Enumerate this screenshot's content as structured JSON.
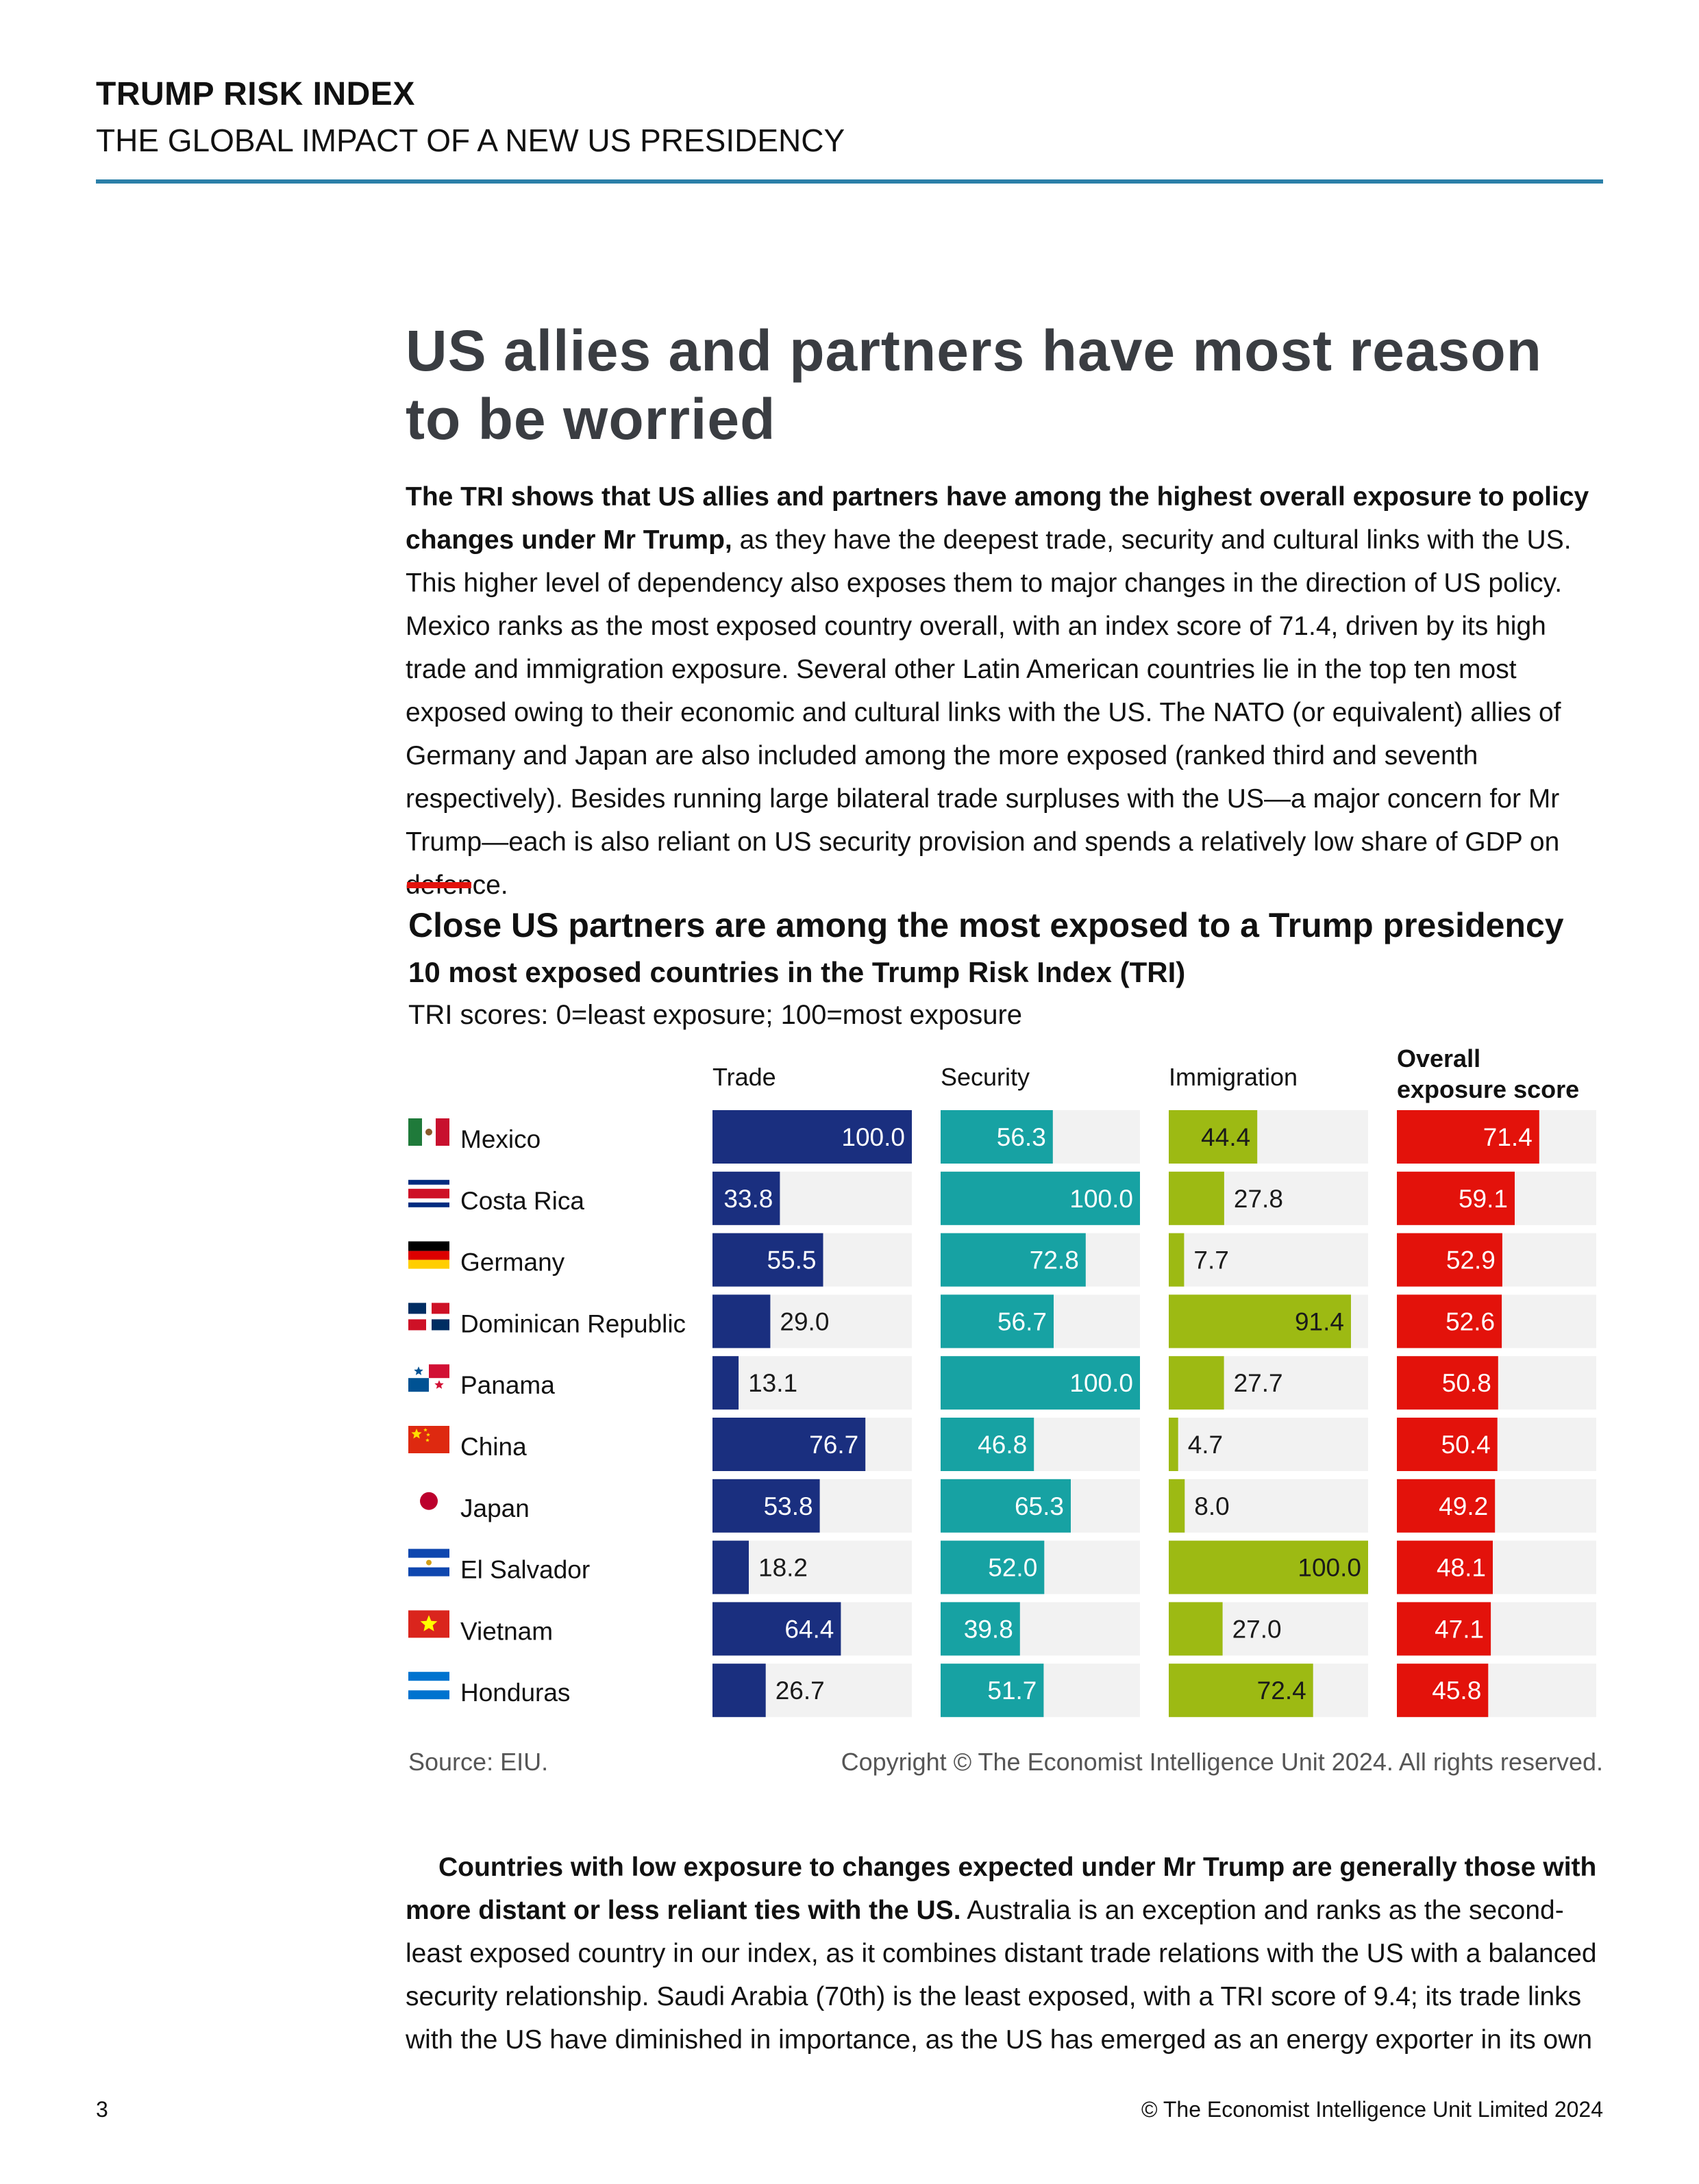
{
  "header": {
    "title": "TRUMP RISK INDEX",
    "subtitle": "THE GLOBAL IMPACT OF A NEW US PRESIDENCY"
  },
  "heading": "US allies and partners have most reason to be worried",
  "para1": {
    "bold": "The TRI shows that US allies and partners have among the highest overall exposure to policy changes under Mr Trump,",
    "text": " as they have the deepest trade, security and cultural links with the US. This higher level of dependency also exposes them to major changes in the direction of US policy. Mexico ranks as the most exposed country overall, with an index score of 71.4, driven by its high trade and immigration exposure. Several other Latin American countries lie in the top ten most exposed owing to their economic and cultural links with the US. The NATO (or equivalent) allies of Germany and Japan are also included among the more exposed (ranked third and seventh respectively). Besides running large bilateral trade surpluses with the US—a major concern for Mr Trump—each is also reliant on US security provision and spends a relatively low share of GDP on defence."
  },
  "chart_data": {
    "type": "bar",
    "title": "Close US partners are among the most exposed to a Trump presidency",
    "subtitle": "10 most exposed countries in the Trump Risk Index (TRI)",
    "note": "TRI scores: 0=least exposure; 100=most exposure",
    "xlim": [
      0,
      100
    ],
    "categories": [
      "Mexico",
      "Costa Rica",
      "Germany",
      "Dominican Republic",
      "Panama",
      "China",
      "Japan",
      "El Salvador",
      "Vietnam",
      "Honduras"
    ],
    "series": [
      {
        "name": "Trade",
        "color": "#1a2f7f",
        "values": [
          100.0,
          33.8,
          55.5,
          29.0,
          13.1,
          76.7,
          53.8,
          18.2,
          64.4,
          26.7
        ]
      },
      {
        "name": "Security",
        "color": "#17a2a3",
        "values": [
          56.3,
          100.0,
          72.8,
          56.7,
          100.0,
          46.8,
          65.3,
          52.0,
          39.8,
          51.7
        ]
      },
      {
        "name": "Immigration",
        "color": "#9dba13",
        "values": [
          44.4,
          27.8,
          7.7,
          91.4,
          27.7,
          4.7,
          8.0,
          100.0,
          27.0,
          72.4
        ]
      },
      {
        "name": "Overall exposure score",
        "color": "#e3120b",
        "values": [
          71.4,
          59.1,
          52.9,
          52.6,
          50.8,
          50.4,
          49.2,
          48.1,
          47.1,
          45.8
        ]
      }
    ],
    "source": "Source: EIU.",
    "copyright": "Copyright © The Economist Intelligence Unit 2024. All rights reserved."
  },
  "para2": {
    "bold": "Countries with low exposure to changes expected under Mr Trump are generally those with more distant or less reliant ties with the US.",
    "text": " Australia is an exception and ranks as the second-least exposed country in our index, as it combines distant trade relations with the US with a balanced security relationship. Saudi Arabia (70th) is the least exposed, with a TRI score of 9.4; its trade links with the US have diminished in importance, as the US has emerged as an energy exporter in its own"
  },
  "footer": {
    "page_number": "3",
    "copyright": "© The Economist Intelligence Unit Limited 2024"
  }
}
